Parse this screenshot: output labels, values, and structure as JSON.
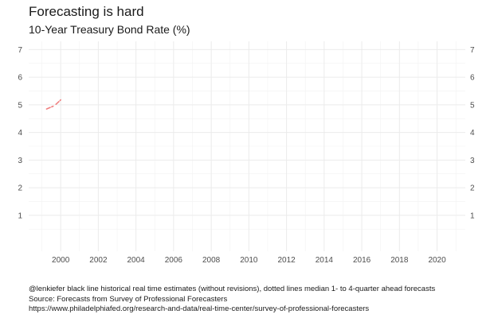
{
  "chart_data": {
    "type": "line",
    "title": "Forecasting is hard",
    "subtitle": "10-Year Treasury Bond Rate (%)",
    "xlabel": "",
    "ylabel": "",
    "xlim": [
      1998.3,
      2021.5
    ],
    "ylim": [
      -0.3,
      7.3
    ],
    "x_ticks": [
      2000,
      2002,
      2004,
      2006,
      2008,
      2010,
      2012,
      2014,
      2016,
      2018,
      2020
    ],
    "y_ticks": [
      1,
      2,
      3,
      4,
      5,
      6,
      7
    ],
    "grid": true,
    "y_axis_both_sides": true,
    "series": [
      {
        "style": "dashed",
        "color": "#f08080",
        "points": [
          [
            1999.25,
            4.85
          ],
          [
            1999.6,
            4.95
          ]
        ]
      },
      {
        "style": "dashed",
        "color": "#f08080",
        "points": [
          [
            1999.75,
            5.02
          ],
          [
            2000.0,
            5.18
          ]
        ]
      }
    ]
  },
  "caption": {
    "line1": "@lenkiefer black line historical real time estimates (without revisions), dotted lines median 1- to 4-quarter ahead forecasts",
    "line2": "Source: Forecasts from Survey of Professional Forecasters",
    "line3": "https://www.philadelphiafed.org/research-and-data/real-time-center/survey-of-professional-forecasters"
  }
}
